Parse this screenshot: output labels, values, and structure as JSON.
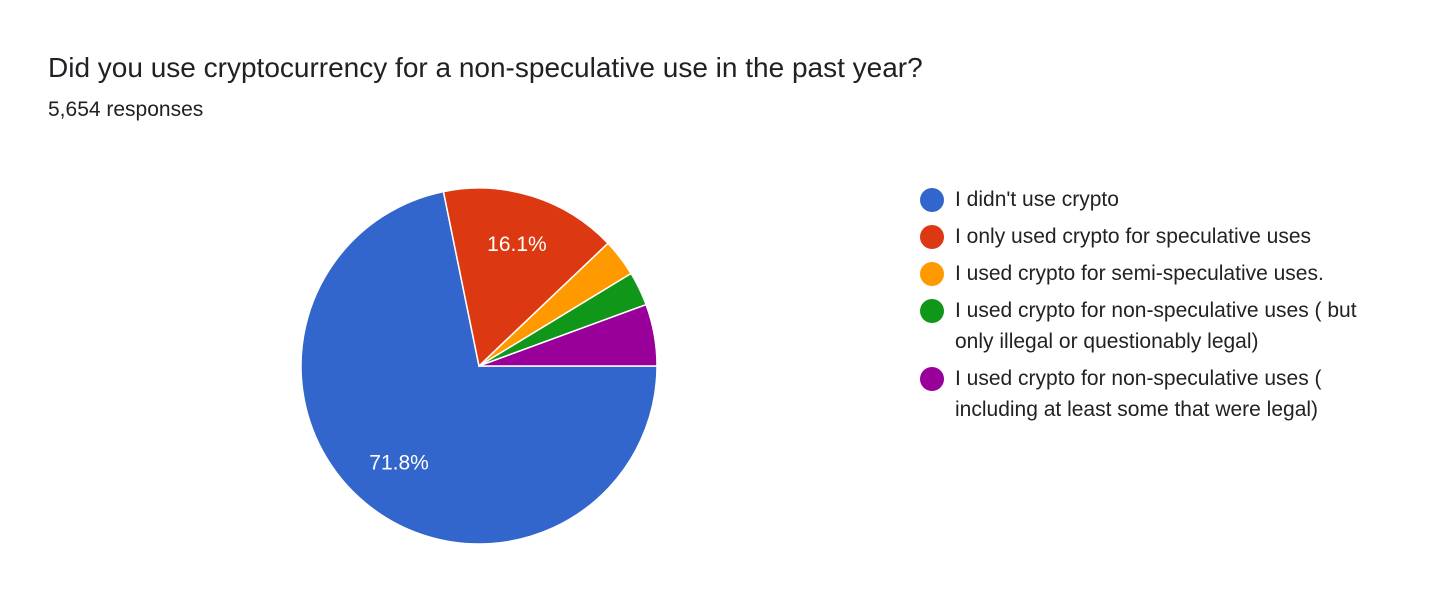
{
  "chart_data": {
    "type": "pie",
    "title": "Did you use cryptocurrency for a non-speculative use in the past year?",
    "subtitle": "5,654 responses",
    "categories": [
      "I didn't use crypto",
      "I only used crypto for speculative uses",
      "I used crypto for semi-speculative uses.",
      "I used crypto for non-speculative uses ( but only illegal or questionably legal)",
      "I used crypto for non-speculative uses ( including at least some that were legal)"
    ],
    "values": [
      71.8,
      16.1,
      3.4,
      3.1,
      5.6
    ],
    "value_labels": [
      "71.8%",
      "16.1%",
      null,
      null,
      null
    ],
    "colors": [
      "#3366cc",
      "#dc3912",
      "#ff9900",
      "#109618",
      "#990099"
    ],
    "legend": "right"
  }
}
